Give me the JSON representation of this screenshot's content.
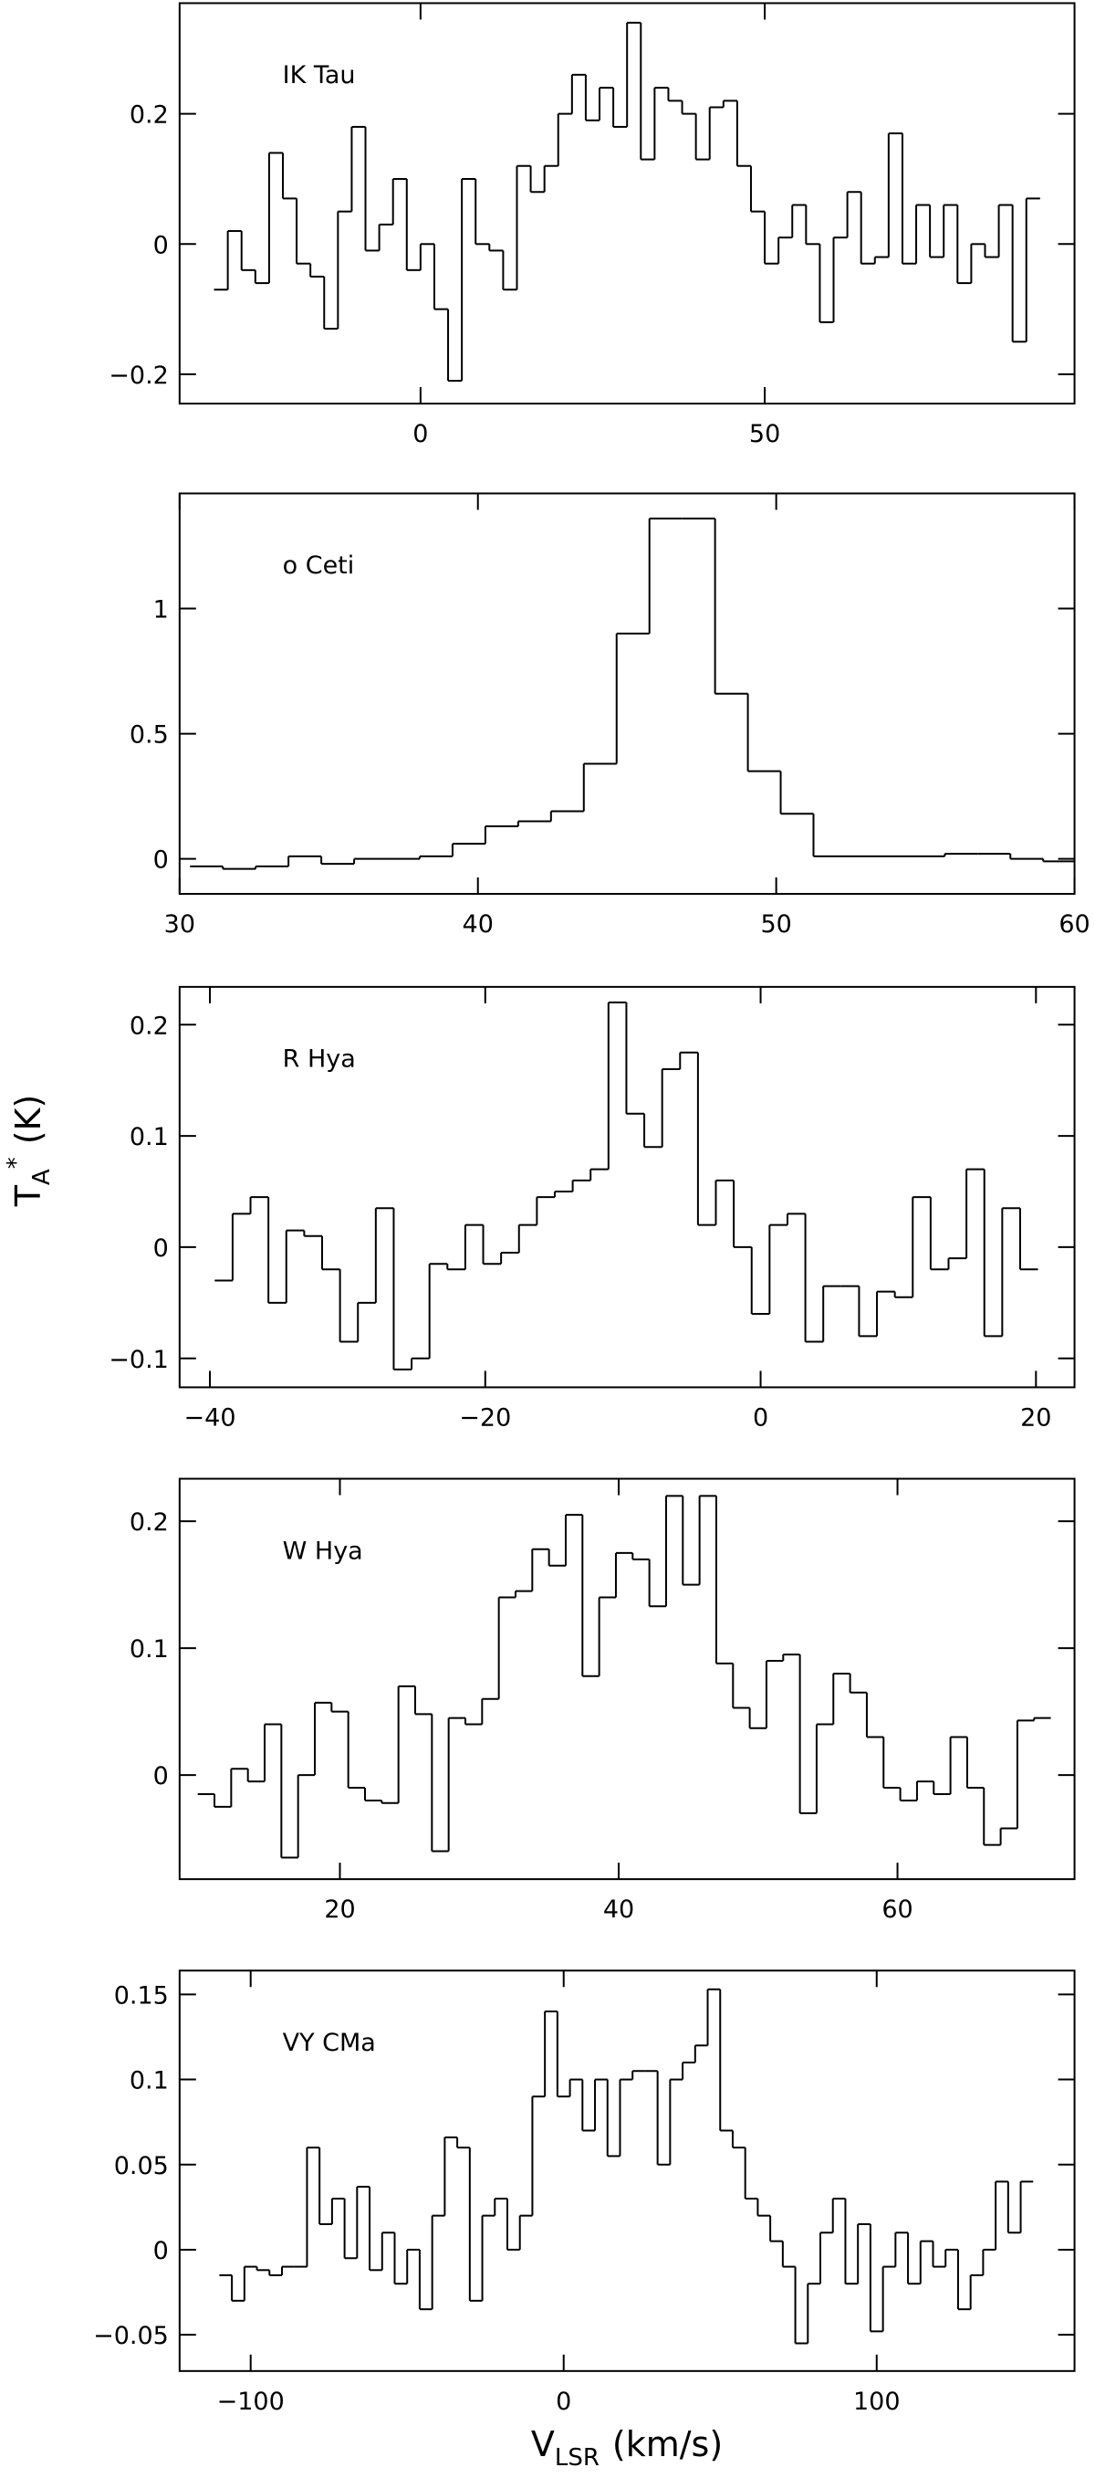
{
  "chart_data": [
    {
      "type": "line",
      "step": true,
      "label": "IK Tau",
      "color": "#000000",
      "xlim": [
        -35,
        95
      ],
      "ylim": [
        -0.245,
        0.37
      ],
      "xticks": [
        0,
        50
      ],
      "yticks": [
        {
          "value": -0.2,
          "label": "−0.2"
        },
        0,
        0.2
      ],
      "x": [
        -29,
        -27,
        -25,
        -23,
        -21,
        -19,
        -17,
        -15,
        -13,
        -11,
        -9,
        -7,
        -5,
        -3,
        -1,
        1,
        3,
        5,
        7,
        9,
        11,
        13,
        15,
        17,
        19,
        21,
        23,
        25,
        27,
        29,
        31,
        33,
        35,
        37,
        39,
        41,
        43,
        45,
        47,
        49,
        51,
        53,
        55,
        57,
        59,
        61,
        63,
        65,
        67,
        69,
        71,
        73,
        75,
        77,
        79,
        81,
        83,
        85,
        87,
        89
      ],
      "values": [
        -0.07,
        0.02,
        -0.04,
        -0.06,
        0.14,
        0.07,
        -0.03,
        -0.05,
        -0.13,
        0.05,
        0.18,
        -0.01,
        0.03,
        0.1,
        -0.04,
        0.0,
        -0.1,
        -0.21,
        0.1,
        0.0,
        -0.01,
        -0.07,
        0.12,
        0.08,
        0.12,
        0.2,
        0.26,
        0.19,
        0.24,
        0.18,
        0.34,
        0.13,
        0.24,
        0.22,
        0.2,
        0.13,
        0.21,
        0.22,
        0.12,
        0.05,
        -0.03,
        0.01,
        0.06,
        0.0,
        -0.12,
        0.01,
        0.08,
        -0.03,
        -0.02,
        0.17,
        -0.03,
        0.06,
        -0.02,
        0.06,
        -0.06,
        0.0,
        -0.02,
        0.06,
        -0.15,
        0.07
      ]
    },
    {
      "type": "line",
      "step": true,
      "label": "o Ceti",
      "color": "#000000",
      "xlim": [
        30,
        60
      ],
      "ylim": [
        -0.14,
        1.46
      ],
      "xticks": [
        30,
        40,
        50,
        60
      ],
      "yticks": [
        0,
        0.5,
        1
      ],
      "x": [
        30.9,
        32.0,
        33.1,
        34.2,
        35.3,
        36.4,
        37.5,
        38.6,
        39.7,
        40.8,
        41.9,
        43.0,
        44.1,
        45.2,
        46.3,
        47.4,
        48.5,
        49.6,
        50.7,
        51.8,
        52.9,
        54.0,
        55.1,
        56.2,
        57.3,
        58.4,
        59.5
      ],
      "values": [
        -0.03,
        -0.04,
        -0.03,
        0.01,
        -0.02,
        0.0,
        0.0,
        0.01,
        0.06,
        0.13,
        0.15,
        0.19,
        0.38,
        0.9,
        1.36,
        1.36,
        0.66,
        0.35,
        0.18,
        0.01,
        0.01,
        0.01,
        0.01,
        0.02,
        0.02,
        0.0,
        -0.01
      ]
    },
    {
      "type": "line",
      "step": true,
      "label": "R Hya",
      "color": "#000000",
      "xlim": [
        -42.2,
        22.8
      ],
      "ylim": [
        -0.126,
        0.234
      ],
      "xticks": [
        {
          "value": -40,
          "label": "−40"
        },
        {
          "value": -20,
          "label": "−20"
        },
        0,
        20
      ],
      "yticks": [
        {
          "value": -0.1,
          "label": "−0.1"
        },
        0,
        0.1,
        0.2
      ],
      "x": [
        -39,
        -37.7,
        -36.4,
        -35.1,
        -33.8,
        -32.5,
        -31.2,
        -29.9,
        -28.6,
        -27.3,
        -26,
        -24.7,
        -23.4,
        -22.1,
        -20.8,
        -19.5,
        -18.2,
        -16.9,
        -15.6,
        -14.3,
        -13,
        -11.7,
        -10.4,
        -9.1,
        -7.8,
        -6.5,
        -5.2,
        -3.9,
        -2.6,
        -1.3,
        0,
        1.3,
        2.6,
        3.9,
        5.2,
        6.5,
        7.8,
        9.1,
        10.4,
        11.7,
        13,
        14.3,
        15.6,
        16.9,
        18.2,
        19.5
      ],
      "values": [
        -0.03,
        0.03,
        0.045,
        -0.05,
        0.015,
        0.01,
        -0.02,
        -0.085,
        -0.05,
        0.035,
        -0.11,
        -0.1,
        -0.015,
        -0.02,
        0.02,
        -0.015,
        -0.005,
        0.02,
        0.045,
        0.05,
        0.06,
        0.07,
        0.22,
        0.12,
        0.09,
        0.16,
        0.175,
        0.02,
        0.06,
        0.0,
        -0.06,
        0.02,
        0.03,
        -0.085,
        -0.035,
        -0.035,
        -0.08,
        -0.04,
        -0.045,
        0.045,
        -0.02,
        -0.01,
        0.07,
        -0.08,
        0.035,
        -0.02
      ]
    },
    {
      "type": "line",
      "step": true,
      "label": "W Hya",
      "color": "#000000",
      "xlim": [
        8.5,
        72.7
      ],
      "ylim": [
        -0.082,
        0.2335
      ],
      "xticks": [
        20,
        40,
        60
      ],
      "yticks": [
        0,
        0.1,
        0.2
      ],
      "x": [
        10.4,
        11.6,
        12.8,
        14,
        15.2,
        16.4,
        17.6,
        18.8,
        20,
        21.2,
        22.4,
        23.6,
        24.8,
        26,
        27.2,
        28.4,
        29.6,
        30.8,
        32,
        33.2,
        34.4,
        35.6,
        36.8,
        38,
        39.2,
        40.4,
        41.6,
        42.8,
        44,
        45.2,
        46.4,
        47.6,
        48.8,
        50,
        51.2,
        52.4,
        53.6,
        54.8,
        56,
        57.2,
        58.4,
        59.6,
        60.8,
        62,
        63.2,
        64.4,
        65.6,
        66.8,
        68,
        69.2,
        70.4
      ],
      "values": [
        -0.015,
        -0.025,
        0.005,
        -0.005,
        0.04,
        -0.065,
        0.0,
        0.057,
        0.05,
        -0.01,
        -0.02,
        -0.022,
        0.07,
        0.048,
        -0.06,
        0.045,
        0.04,
        0.06,
        0.14,
        0.145,
        0.178,
        0.165,
        0.205,
        0.078,
        0.14,
        0.175,
        0.17,
        0.133,
        0.22,
        0.15,
        0.22,
        0.088,
        0.053,
        0.037,
        0.09,
        0.095,
        -0.03,
        0.04,
        0.08,
        0.065,
        0.03,
        -0.01,
        -0.02,
        -0.005,
        -0.015,
        0.03,
        -0.01,
        -0.055,
        -0.042,
        0.043,
        0.045
      ]
    },
    {
      "type": "line",
      "step": true,
      "label": "VY CMa",
      "color": "#000000",
      "xlim": [
        -122.7,
        163.2
      ],
      "ylim": [
        -0.0713,
        0.164
      ],
      "xticks": [
        {
          "value": -100,
          "label": "−100"
        },
        0,
        100
      ],
      "yticks": [
        {
          "value": -0.05,
          "label": "−0.05"
        },
        0,
        0.05,
        0.1,
        0.15
      ],
      "x": [
        -108,
        -104,
        -100,
        -96,
        -92,
        -88,
        -84,
        -80,
        -76,
        -72,
        -68,
        -64,
        -60,
        -56,
        -52,
        -48,
        -44,
        -40,
        -36,
        -32,
        -28,
        -24,
        -20,
        -16,
        -12,
        -8,
        -4,
        0,
        4,
        8,
        12,
        16,
        20,
        24,
        28,
        32,
        36,
        40,
        44,
        48,
        52,
        56,
        60,
        64,
        68,
        72,
        76,
        80,
        84,
        88,
        92,
        96,
        100,
        104,
        108,
        112,
        116,
        120,
        124,
        128,
        132,
        136,
        140,
        144,
        148
      ],
      "values": [
        -0.015,
        -0.03,
        -0.01,
        -0.012,
        -0.015,
        -0.01,
        -0.01,
        0.06,
        0.015,
        0.03,
        -0.005,
        0.037,
        -0.012,
        0.01,
        -0.02,
        0.0,
        -0.035,
        0.02,
        0.066,
        0.06,
        -0.03,
        0.02,
        0.03,
        0.0,
        0.02,
        0.09,
        0.14,
        0.09,
        0.1,
        0.07,
        0.1,
        0.055,
        0.1,
        0.105,
        0.105,
        0.05,
        0.1,
        0.11,
        0.12,
        0.153,
        0.07,
        0.06,
        0.03,
        0.02,
        0.005,
        -0.01,
        -0.055,
        -0.02,
        0.01,
        0.03,
        -0.02,
        0.015,
        -0.048,
        -0.01,
        0.01,
        -0.02,
        0.005,
        -0.01,
        0.0,
        -0.035,
        -0.015,
        0.0,
        0.04,
        0.01,
        0.04
      ]
    }
  ],
  "y_axis_label": {
    "main": "T",
    "sub": "A",
    "sup": "*",
    "unit": "(K)"
  },
  "x_axis_label": {
    "main": "V",
    "sub": "LSR",
    "unit": "(km/s)"
  }
}
